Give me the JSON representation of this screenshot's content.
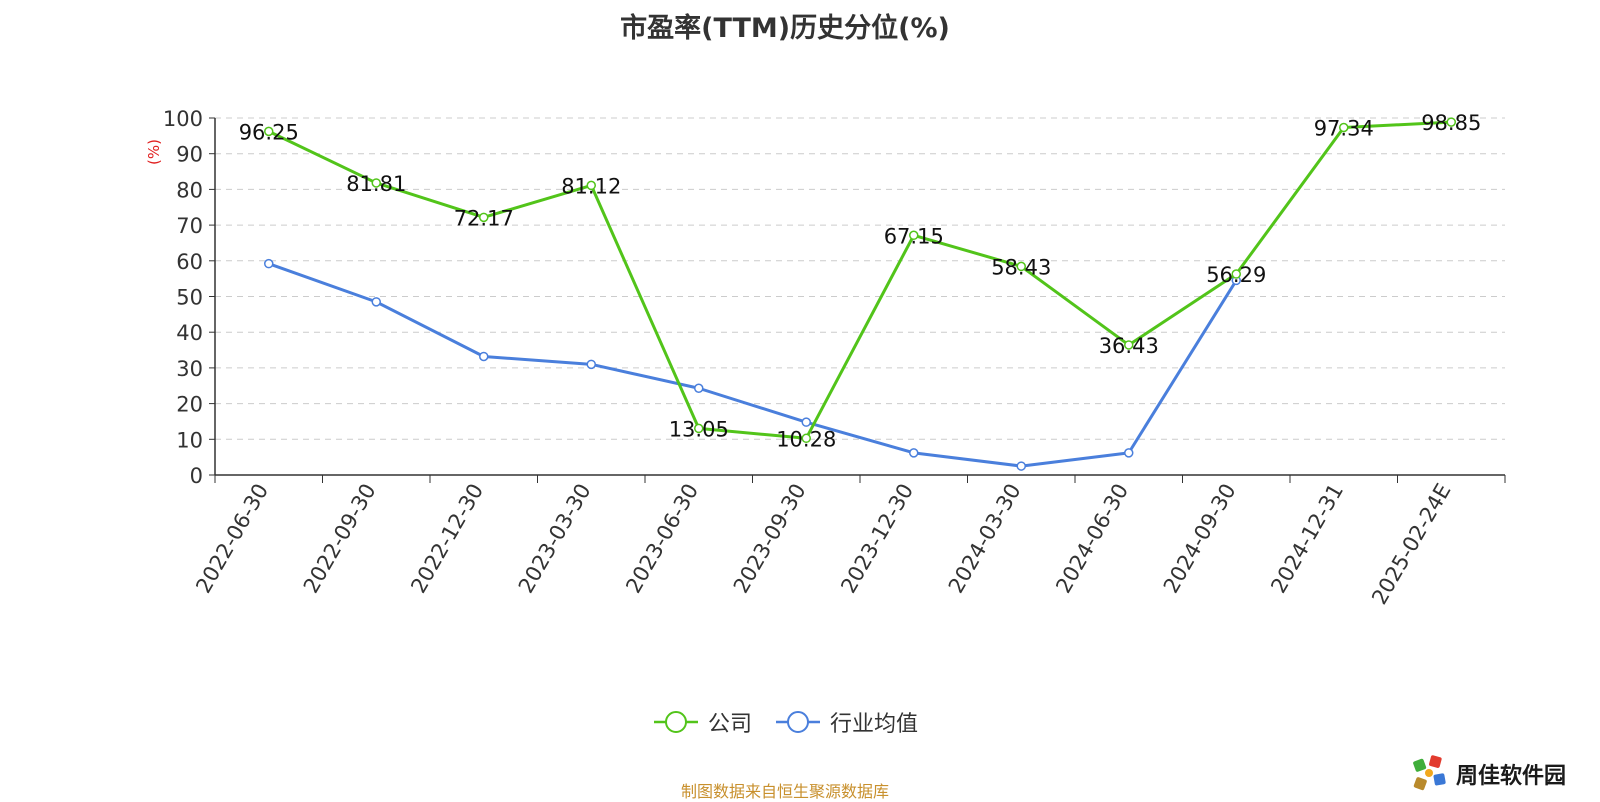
{
  "chart_data": {
    "type": "line",
    "title": "市盈率(TTM)历史分位(%)",
    "ylabel": "(%)",
    "xlabel": "",
    "ylim": [
      0,
      100
    ],
    "yticks": [
      0,
      10,
      20,
      30,
      40,
      50,
      60,
      70,
      80,
      90,
      100
    ],
    "grid": "horizontal dashed",
    "legend_position": "bottom-center",
    "categories": [
      "2022-06-30",
      "2022-09-30",
      "2022-12-30",
      "2023-03-30",
      "2023-06-30",
      "2023-09-30",
      "2023-12-30",
      "2024-03-30",
      "2024-06-30",
      "2024-09-30",
      "2024-12-31",
      "2025-02-24E"
    ],
    "series": [
      {
        "name": "公司",
        "color": "#52c41a",
        "values": [
          96.25,
          81.81,
          72.17,
          81.12,
          13.05,
          10.28,
          67.15,
          58.43,
          36.43,
          56.29,
          97.34,
          98.85
        ],
        "labels": [
          "96.25",
          "81.81",
          "72.17",
          "81.12",
          "13.05",
          "10.28",
          "67.15",
          "58.43",
          "36.43",
          "56.29",
          "97.34",
          "98.85"
        ]
      },
      {
        "name": "行业均值",
        "color": "#4a7fdc",
        "values": [
          59.2,
          48.5,
          33.2,
          31.0,
          24.3,
          14.8,
          6.2,
          2.5,
          6.2,
          54.5,
          null,
          null
        ]
      }
    ]
  },
  "footer": {
    "source": "制图数据来自恒生聚源数据库",
    "brand": "周佳软件园"
  }
}
